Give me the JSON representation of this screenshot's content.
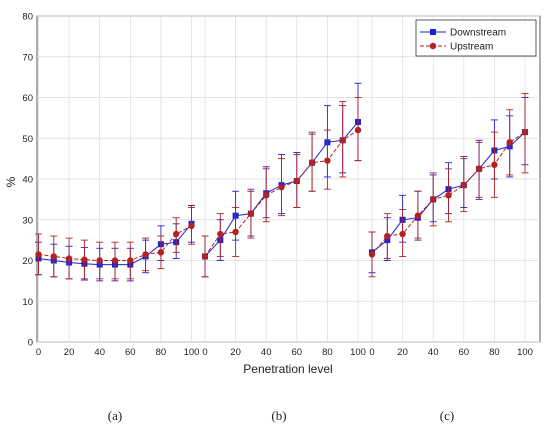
{
  "chart_data": {
    "type": "line",
    "xlabel": "Penetration level",
    "ylabel": "%",
    "ylim": [
      0,
      80
    ],
    "yticks": [
      0,
      10,
      20,
      30,
      40,
      50,
      60,
      70,
      80
    ],
    "x_tick_labels": [
      "0",
      "20",
      "40",
      "60",
      "80",
      "100"
    ],
    "grid": true,
    "legend_position": "top-right",
    "x_per_panel": [
      0,
      10,
      20,
      30,
      40,
      50,
      60,
      70,
      80,
      90,
      100
    ],
    "panels": [
      {
        "label": "(a)",
        "series": [
          {
            "name": "Downstream",
            "color": "#2222cc",
            "values": [
              20.5,
              20.0,
              19.5,
              19.2,
              19.0,
              19.0,
              19.0,
              21.0,
              24.0,
              24.5,
              29.0
            ],
            "err_low": [
              16.5,
              16.0,
              15.5,
              15.2,
              15.0,
              15.0,
              15.0,
              17.0,
              20.0,
              20.5,
              24.5
            ],
            "err_high": [
              24.5,
              24.0,
              23.5,
              23.2,
              23.0,
              23.0,
              23.0,
              25.0,
              28.5,
              29.0,
              33.5
            ]
          },
          {
            "name": "Upstream",
            "color": "#b22222",
            "values": [
              21.5,
              21.0,
              20.5,
              20.2,
              20.0,
              20.0,
              20.0,
              21.5,
              22.0,
              26.5,
              28.5
            ],
            "err_low": [
              16.5,
              16.0,
              15.5,
              15.5,
              15.5,
              15.5,
              15.5,
              17.5,
              18.0,
              22.0,
              24.0
            ],
            "err_high": [
              26.5,
              26.0,
              25.5,
              25.0,
              24.5,
              24.5,
              24.5,
              25.5,
              26.0,
              30.5,
              33.0
            ]
          }
        ]
      },
      {
        "label": "(b)",
        "series": [
          {
            "name": "Downstream",
            "color": "#2222cc",
            "values": [
              21.0,
              25.0,
              31.0,
              31.5,
              36.5,
              38.5,
              39.5,
              44.0,
              49.0,
              49.5,
              54.0
            ],
            "err_low": [
              16.0,
              20.0,
              25.0,
              26.0,
              30.5,
              31.5,
              33.0,
              37.0,
              40.5,
              41.5,
              44.5
            ],
            "err_high": [
              26.0,
              30.0,
              37.0,
              37.0,
              43.0,
              46.0,
              46.5,
              51.0,
              58.0,
              58.0,
              63.5
            ]
          },
          {
            "name": "Upstream",
            "color": "#b22222",
            "values": [
              21.0,
              26.5,
              27.0,
              31.5,
              36.0,
              38.0,
              39.5,
              44.0,
              44.5,
              49.5,
              52.0
            ],
            "err_low": [
              16.0,
              21.0,
              21.0,
              25.5,
              29.5,
              31.0,
              33.0,
              37.0,
              37.5,
              40.5,
              44.5
            ],
            "err_high": [
              26.0,
              31.5,
              33.0,
              37.5,
              42.5,
              45.0,
              46.0,
              51.5,
              52.0,
              59.0,
              60.0
            ]
          }
        ]
      },
      {
        "label": "(c)",
        "series": [
          {
            "name": "Downstream",
            "color": "#2222cc",
            "values": [
              22.0,
              25.0,
              30.0,
              30.5,
              35.0,
              37.5,
              38.5,
              42.5,
              47.0,
              48.0,
              51.5
            ],
            "err_low": [
              17.0,
              20.0,
              24.5,
              25.0,
              29.5,
              31.5,
              33.0,
              35.0,
              40.0,
              40.5,
              43.5
            ],
            "err_high": [
              27.0,
              30.5,
              36.0,
              37.0,
              41.0,
              44.0,
              45.5,
              49.5,
              54.5,
              55.5,
              60.0
            ]
          },
          {
            "name": "Upstream",
            "color": "#b22222",
            "values": [
              21.5,
              26.0,
              26.5,
              31.0,
              35.0,
              36.0,
              38.5,
              42.5,
              43.5,
              49.0,
              51.5
            ],
            "err_low": [
              16.0,
              20.5,
              21.0,
              25.5,
              28.5,
              29.5,
              32.0,
              35.5,
              35.5,
              41.0,
              41.5
            ],
            "err_high": [
              27.0,
              31.5,
              32.5,
              37.0,
              41.5,
              42.5,
              45.0,
              49.0,
              51.5,
              57.0,
              61.0
            ]
          }
        ]
      }
    ]
  }
}
